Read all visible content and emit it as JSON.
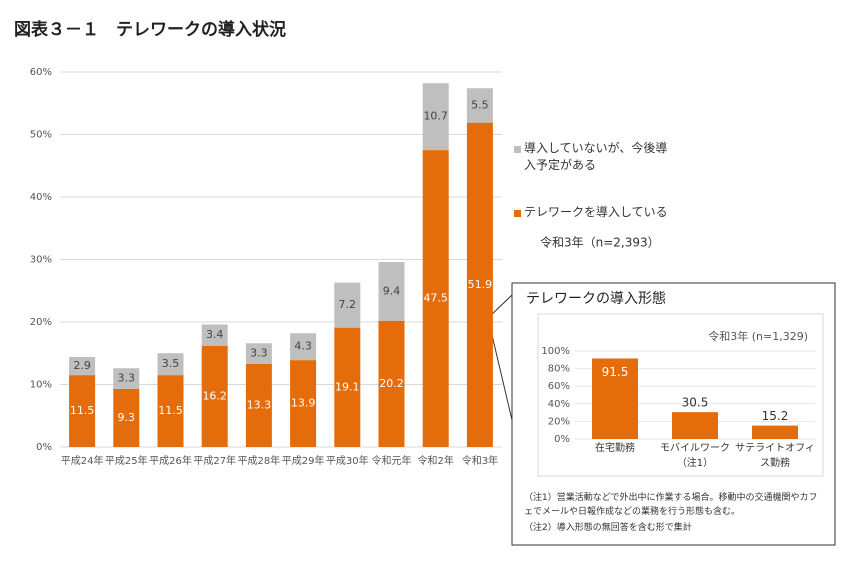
{
  "chart_data": [
    {
      "type": "bar",
      "stacked": true,
      "title": "図表３－１　テレワークの導入状況",
      "categories": [
        "平成24年",
        "平成25年",
        "平成26年",
        "平成27年",
        "平成28年",
        "平成29年",
        "平成30年",
        "令和元年",
        "令和2年",
        "令和3年"
      ],
      "series": [
        {
          "name": "テレワークを導入している",
          "color": "#e46c0a",
          "values": [
            11.5,
            9.3,
            11.5,
            16.2,
            13.3,
            13.9,
            19.1,
            20.2,
            47.5,
            51.9
          ]
        },
        {
          "name": "導入していないが、今後導入予定がある",
          "color": "#bfbfbf",
          "values": [
            2.9,
            3.3,
            3.5,
            3.4,
            3.3,
            4.3,
            7.2,
            9.4,
            10.7,
            5.5
          ]
        }
      ],
      "ylim": [
        0,
        60
      ],
      "yticks": [
        {
          "value": 0,
          "label": "0%"
        },
        {
          "value": 10,
          "label": "10%"
        },
        {
          "value": 20,
          "label": "20%"
        },
        {
          "value": 30,
          "label": "30%"
        },
        {
          "value": 40,
          "label": "40%"
        },
        {
          "value": 50,
          "label": "50%"
        },
        {
          "value": 60,
          "label": "60%"
        }
      ],
      "grid": true,
      "annotation": "令和3年（n=2,393）"
    },
    {
      "type": "bar",
      "title": "テレワークの導入形態",
      "annotation": "令和3年 (n=1,329)",
      "categories": [
        "在宅勤務",
        "モバイルワーク（注1）",
        "サテライトオフィス勤務"
      ],
      "values": [
        91.5,
        30.5,
        15.2
      ],
      "color": "#e46c0a",
      "ylim": [
        0,
        100
      ],
      "yticks": [
        {
          "value": 0,
          "label": "0%"
        },
        {
          "value": 20,
          "label": "20%"
        },
        {
          "value": 40,
          "label": "40%"
        },
        {
          "value": 60,
          "label": "60%"
        },
        {
          "value": 80,
          "label": "80%"
        },
        {
          "value": 100,
          "label": "100%"
        }
      ],
      "grid": true,
      "notes": [
        "（注1）営業活動などで外出中に作業する場合。移動中の交通機関やカフェでメールや日報作成などの業務を行う形態も含む。",
        "（注2）導入形態の無回答を含む形で集計"
      ]
    }
  ]
}
